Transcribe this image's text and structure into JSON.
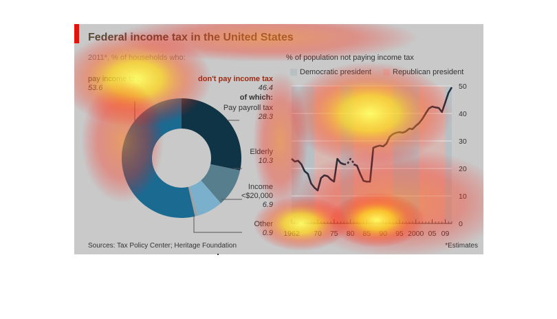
{
  "header": {
    "title": "Federal income tax in the United States"
  },
  "left_panel": {
    "subtitle": "2011*, % of households who:",
    "pay_label": "pay income tax",
    "pay_value": "53.6",
    "dont_pay_label": "don't pay income tax",
    "dont_pay_value": "46.4",
    "of_which_label": "of which:",
    "payroll_label": "Pay payroll tax",
    "payroll_value": "28.3",
    "elderly_label": "Elderly",
    "elderly_value": "10.3",
    "income_label_1": "Income",
    "income_label_2": "<$20,000",
    "income_value": "6.9",
    "other_label": "Other",
    "other_value": "0.9"
  },
  "right_panel": {
    "title": "% of population not paying income tax",
    "legend_dem": "Democratic president",
    "legend_rep": "Republican president"
  },
  "footer": {
    "source": "Sources: Tax Policy Center; Heritage Foundation",
    "footnote": "*Estimates"
  },
  "colors": {
    "pay": "#1b6a92",
    "payroll": "#0f3446",
    "elderly": "#577e8d",
    "income": "#7ab0cb",
    "other": "#9aa3a7",
    "dem_band": "#b9c0c4",
    "rep_band": "#d7b8b3",
    "line": "#1d2f3e",
    "accent": "#e3120b"
  },
  "chart_data": [
    {
      "type": "pie",
      "title": "2011*, % of households who:",
      "slices": [
        {
          "name": "Pay payroll tax",
          "value": 28.3
        },
        {
          "name": "Elderly",
          "value": 10.3
        },
        {
          "name": "Income <$20,000",
          "value": 6.9
        },
        {
          "name": "Other",
          "value": 0.9
        },
        {
          "name": "pay income tax",
          "value": 53.6
        }
      ]
    },
    {
      "type": "line",
      "title": "% of population not paying income tax",
      "yticks": [
        0,
        10,
        20,
        30,
        40,
        50
      ],
      "ylim": [
        0,
        50
      ],
      "xlim": [
        1962,
        2011
      ],
      "xtick_values": [
        1962,
        1970,
        1975,
        1980,
        1985,
        1990,
        1995,
        2000,
        2005,
        2009
      ],
      "xtick_labels": [
        "1962",
        "70",
        "75",
        "80",
        "85",
        "90",
        "95",
        "2000",
        "05",
        "09"
      ],
      "legend": [
        "Democratic president",
        "Republican president"
      ],
      "legend_position": "top",
      "presidency_bands": [
        {
          "party": "dem",
          "from": 1962,
          "to": 1969
        },
        {
          "party": "rep",
          "from": 1969,
          "to": 1977
        },
        {
          "party": "dem",
          "from": 1977,
          "to": 1981
        },
        {
          "party": "rep",
          "from": 1981,
          "to": 1993
        },
        {
          "party": "dem",
          "from": 1993,
          "to": 2001
        },
        {
          "party": "rep",
          "from": 2001,
          "to": 2009
        },
        {
          "party": "dem",
          "from": 2009,
          "to": 2011
        }
      ],
      "series": [
        {
          "x": [
            1962,
            1963,
            1964,
            1965,
            1966,
            1967,
            1968,
            1969,
            1970,
            1971,
            1972,
            1973,
            1974,
            1975,
            1976,
            1977,
            1978
          ],
          "y": [
            23.5,
            22.5,
            22.8,
            21.5,
            19,
            18,
            14.5,
            13,
            12,
            16.5,
            17.5,
            17.2,
            16,
            15.2,
            23.5,
            22,
            21.5
          ]
        },
        {
          "dashed": true,
          "x": [
            1978,
            1979,
            1980,
            1981
          ],
          "y": [
            21.5,
            21.5,
            23.5,
            22
          ]
        },
        {
          "x": [
            1981,
            1982,
            1983,
            1984,
            1985,
            1986,
            1987,
            1988,
            1989,
            1990,
            1991,
            1992,
            1993,
            1994,
            1995,
            1996,
            1997,
            1998,
            1999,
            2000,
            2001,
            2002,
            2003,
            2004,
            2005,
            2006,
            2007,
            2008,
            2009,
            2010,
            2011
          ],
          "y": [
            21.5,
            21,
            18,
            15.5,
            15.2,
            15.2,
            27.5,
            28,
            28.3,
            28,
            29,
            31.5,
            32.5,
            33,
            33.2,
            33,
            33.5,
            34.5,
            34.3,
            35.5,
            36.5,
            38,
            40,
            41.8,
            42.5,
            42.2,
            42,
            40.5,
            44,
            47.5,
            49.5
          ]
        }
      ]
    }
  ]
}
